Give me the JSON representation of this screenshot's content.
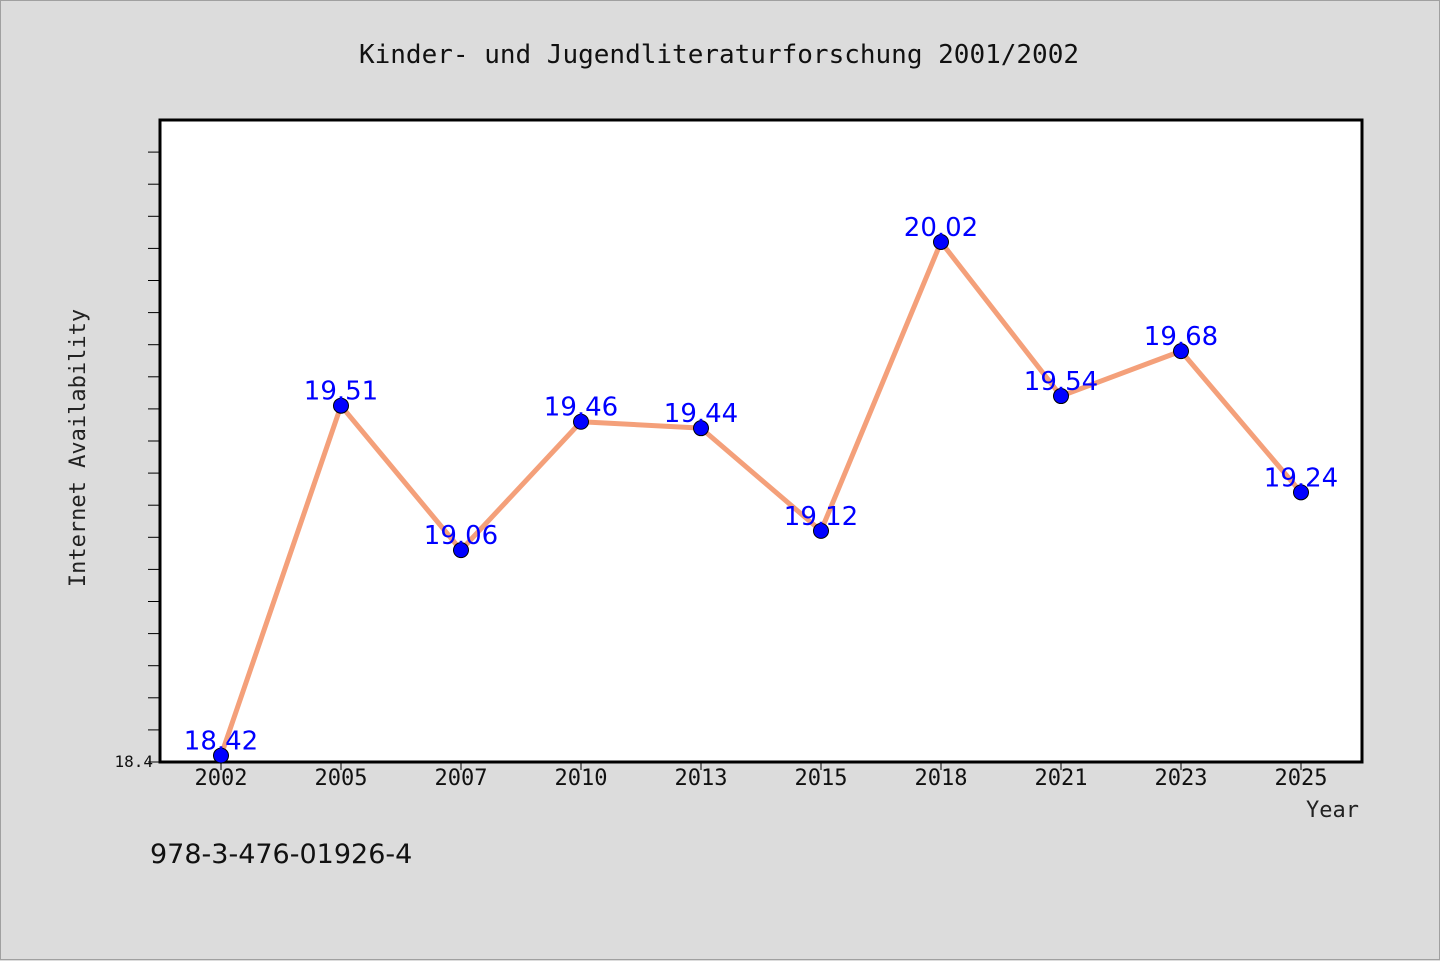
{
  "chart_data": {
    "type": "line",
    "title": "Kinder- und Jugendliteraturforschung 2001/2002",
    "xlabel": "Year",
    "ylabel": "Internet Availability",
    "categories": [
      "2002",
      "2005",
      "2007",
      "2010",
      "2013",
      "2015",
      "2018",
      "2021",
      "2023",
      "2025"
    ],
    "series": [
      {
        "values": [
          18.42,
          19.51,
          19.06,
          19.46,
          19.44,
          19.12,
          20.02,
          19.54,
          19.68,
          19.24
        ],
        "labels": [
          "18.42",
          "19.51",
          "19.06",
          "19.46",
          "19.44",
          "19.12",
          "20.02",
          "19.54",
          "19.68",
          "19.24"
        ]
      }
    ],
    "ylim": [
      18.4,
      20.4
    ],
    "y_min_label": "18.4",
    "grid": false,
    "line_color": "#f4a07a",
    "marker_color": "#0000ff",
    "label_color": "#0000ff"
  },
  "footer": {
    "isbn": "978-3-476-01926-4"
  }
}
